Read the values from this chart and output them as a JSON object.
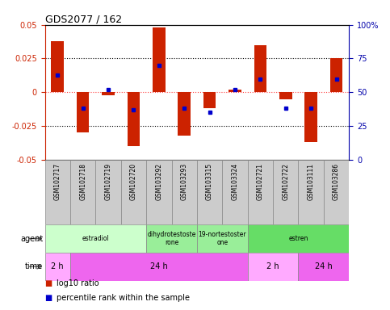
{
  "title": "GDS2077 / 162",
  "samples": [
    "GSM102717",
    "GSM102718",
    "GSM102719",
    "GSM102720",
    "GSM103292",
    "GSM103293",
    "GSM103315",
    "GSM103324",
    "GSM102721",
    "GSM102722",
    "GSM103111",
    "GSM103286"
  ],
  "log10_ratio": [
    0.038,
    -0.03,
    -0.002,
    -0.04,
    0.048,
    -0.032,
    -0.012,
    0.002,
    0.035,
    -0.005,
    -0.037,
    0.025
  ],
  "percentile": [
    0.63,
    0.38,
    0.52,
    0.37,
    0.7,
    0.38,
    0.35,
    0.52,
    0.6,
    0.38,
    0.38,
    0.6
  ],
  "ylim": [
    -0.05,
    0.05
  ],
  "yticks_left": [
    -0.05,
    -0.025,
    0,
    0.025,
    0.05
  ],
  "yticks_right": [
    0,
    25,
    50,
    75,
    100
  ],
  "hlines": [
    0.025,
    0,
    -0.025
  ],
  "agent_groups": [
    {
      "label": "estradiol",
      "start": 0,
      "end": 4,
      "color": "#ccffcc"
    },
    {
      "label": "dihydrotestoste\nrone",
      "start": 4,
      "end": 6,
      "color": "#99ee99"
    },
    {
      "label": "19-nortestoster\none",
      "start": 6,
      "end": 8,
      "color": "#99ee99"
    },
    {
      "label": "estren",
      "start": 8,
      "end": 12,
      "color": "#66dd66"
    }
  ],
  "time_groups": [
    {
      "label": "2 h",
      "start": 0,
      "end": 1,
      "color": "#ffaaff"
    },
    {
      "label": "24 h",
      "start": 1,
      "end": 8,
      "color": "#ee66ee"
    },
    {
      "label": "2 h",
      "start": 8,
      "end": 10,
      "color": "#ffaaff"
    },
    {
      "label": "24 h",
      "start": 10,
      "end": 12,
      "color": "#ee66ee"
    }
  ],
  "bar_color": "#cc2200",
  "dot_color": "#0000cc",
  "left_label_color": "#cc2200",
  "right_label_color": "#0000aa",
  "label_bg": "#cccccc",
  "hline_zero_color": "#ff4444"
}
